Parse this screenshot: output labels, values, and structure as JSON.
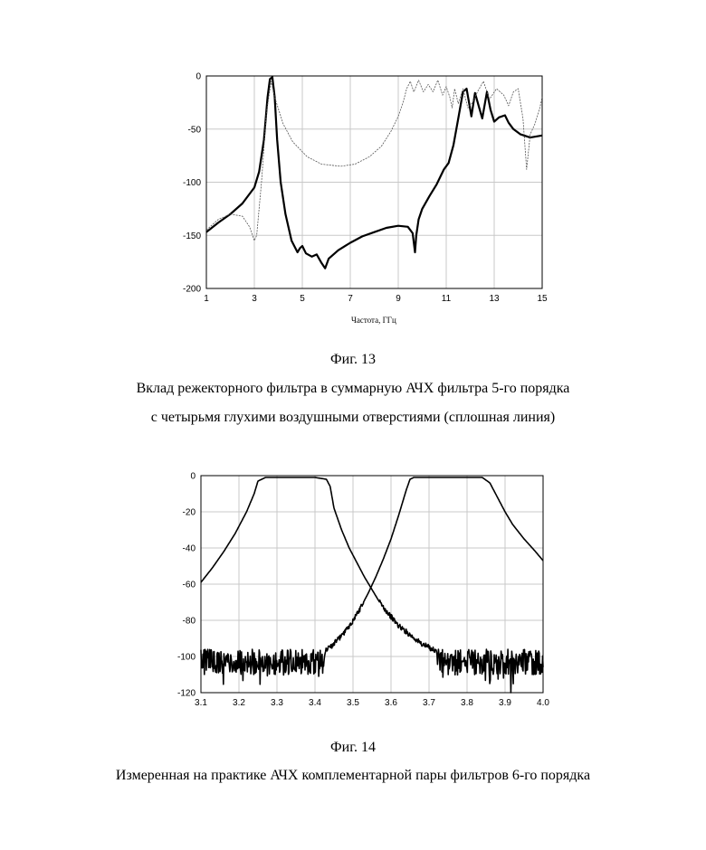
{
  "fig13": {
    "label": "Фиг. 13",
    "caption_line1": "Вклад режекторного фильтра в суммарную АЧХ фильтра 5-го порядка",
    "caption_line2": "с четырьмя глухими воздушными отверстиями (сплошная линия)"
  },
  "fig14": {
    "label": "Фиг. 14",
    "caption": "Измеренная на практике АЧХ комплементарной пары фильтров 6-го порядка"
  },
  "chart_data": [
    {
      "type": "line",
      "title": "",
      "xlabel": "Частота, ГГц",
      "ylabel": "",
      "xlim": [
        1,
        15
      ],
      "ylim": [
        -200,
        0
      ],
      "x_ticks": [
        "1",
        "3",
        "5",
        "7",
        "9",
        "11",
        "13",
        "15"
      ],
      "y_ticks": [
        "0",
        "-50",
        "-100",
        "-150",
        "-200"
      ],
      "grid": true,
      "series": [
        {
          "style": "solid-thick",
          "color": "#000000",
          "x": [
            1,
            1.5,
            2,
            2.5,
            3,
            3.2,
            3.4,
            3.55,
            3.65,
            3.75,
            3.85,
            3.95,
            4.1,
            4.3,
            4.55,
            4.8,
            4.9,
            5.0,
            5.15,
            5.4,
            5.6,
            5.8,
            5.95,
            6.1,
            6.5,
            7,
            7.5,
            8,
            8.5,
            9,
            9.4,
            9.6,
            9.7,
            9.75,
            9.85,
            10,
            10.3,
            10.6,
            10.9,
            11.1,
            11.3,
            11.5,
            11.7,
            11.85,
            11.95,
            12.05,
            12.2,
            12.35,
            12.5,
            12.7,
            12.85,
            13.0,
            13.2,
            13.45,
            13.6,
            13.8,
            14.1,
            14.5,
            15
          ],
          "y": [
            -147,
            -138,
            -130,
            -120,
            -105,
            -90,
            -60,
            -20,
            -3,
            -1,
            -20,
            -60,
            -100,
            -130,
            -155,
            -166,
            -162,
            -160,
            -167,
            -170,
            -168,
            -176,
            -181,
            -172,
            -164,
            -157,
            -151,
            -147,
            -143,
            -141,
            -142,
            -148,
            -166,
            -150,
            -135,
            -125,
            -113,
            -102,
            -88,
            -82,
            -65,
            -40,
            -15,
            -12,
            -25,
            -38,
            -16,
            -28,
            -40,
            -15,
            -32,
            -43,
            -39,
            -37,
            -44,
            -50,
            -55,
            -58,
            -56
          ]
        },
        {
          "style": "dotted-thin",
          "color": "#555555",
          "x": [
            1,
            1.5,
            2,
            2.5,
            2.8,
            3.0,
            3.1,
            3.3,
            3.5,
            3.7,
            3.85,
            4.2,
            4.6,
            5.2,
            5.8,
            6.6,
            7.2,
            7.8,
            8.3,
            8.7,
            9.0,
            9.2,
            9.35,
            9.5,
            9.65,
            9.85,
            10.05,
            10.25,
            10.45,
            10.65,
            10.85,
            11.0,
            11.15,
            11.25,
            11.35,
            11.5,
            11.7,
            11.9,
            12.1,
            12.3,
            12.55,
            12.8,
            13.1,
            13.4,
            13.6,
            13.8,
            14.0,
            14.2,
            14.35,
            14.5,
            14.7,
            14.9,
            15
          ],
          "y": [
            -145,
            -135,
            -130,
            -132,
            -142,
            -155,
            -150,
            -100,
            -35,
            -5,
            -20,
            -45,
            -62,
            -76,
            -83,
            -85,
            -83,
            -76,
            -66,
            -52,
            -38,
            -25,
            -12,
            -5,
            -15,
            -4,
            -15,
            -8,
            -15,
            -4,
            -18,
            -10,
            -20,
            -30,
            -12,
            -26,
            -12,
            -30,
            -25,
            -15,
            -5,
            -22,
            -12,
            -18,
            -28,
            -15,
            -12,
            -40,
            -88,
            -55,
            -45,
            -30,
            -20
          ]
        }
      ]
    },
    {
      "type": "line",
      "title": "",
      "xlabel": "",
      "ylabel": "",
      "xlim": [
        3.1,
        4.0
      ],
      "ylim": [
        -120,
        0
      ],
      "x_ticks": [
        "3.1",
        "3.2",
        "3.3",
        "3.4",
        "3.5",
        "3.6",
        "3.7",
        "3.8",
        "3.9",
        "4.0"
      ],
      "y_ticks": [
        "0",
        "-20",
        "-40",
        "-60",
        "-80",
        "-100",
        "-120"
      ],
      "grid": true,
      "series": [
        {
          "style": "solid-thick",
          "color": "#000000",
          "noise_floor": -103,
          "x": [
            3.1,
            3.13,
            3.16,
            3.19,
            3.22,
            3.24,
            3.25,
            3.27,
            3.3,
            3.35,
            3.4,
            3.43,
            3.44,
            3.45,
            3.47,
            3.49,
            3.51,
            3.53,
            3.55,
            3.57,
            3.6,
            3.62,
            3.65,
            3.68,
            3.72,
            3.76,
            3.8,
            3.85,
            3.9,
            3.95,
            4.0
          ],
          "y": [
            -59,
            -51,
            -42,
            -32,
            -20,
            -10,
            -3,
            -1,
            -1,
            -1,
            -1,
            -2,
            -6,
            -18,
            -30,
            -40,
            -48,
            -56,
            -63,
            -70,
            -78,
            -83,
            -88,
            -93,
            -97,
            -100,
            -102,
            -103,
            -103,
            -103,
            -103
          ]
        },
        {
          "style": "solid-thick",
          "color": "#000000",
          "noise_floor": -103,
          "x": [
            3.1,
            3.2,
            3.3,
            3.38,
            3.42,
            3.45,
            3.48,
            3.5,
            3.52,
            3.54,
            3.56,
            3.58,
            3.6,
            3.62,
            3.64,
            3.65,
            3.66,
            3.7,
            3.75,
            3.8,
            3.84,
            3.86,
            3.88,
            3.9,
            3.92,
            3.95,
            3.98,
            4.0
          ],
          "y": [
            -103,
            -103,
            -103,
            -102,
            -98,
            -93,
            -86,
            -80,
            -73,
            -65,
            -56,
            -46,
            -35,
            -22,
            -8,
            -2,
            -1,
            -1,
            -1,
            -1,
            -1,
            -4,
            -12,
            -20,
            -27,
            -35,
            -42,
            -47
          ]
        }
      ]
    }
  ]
}
